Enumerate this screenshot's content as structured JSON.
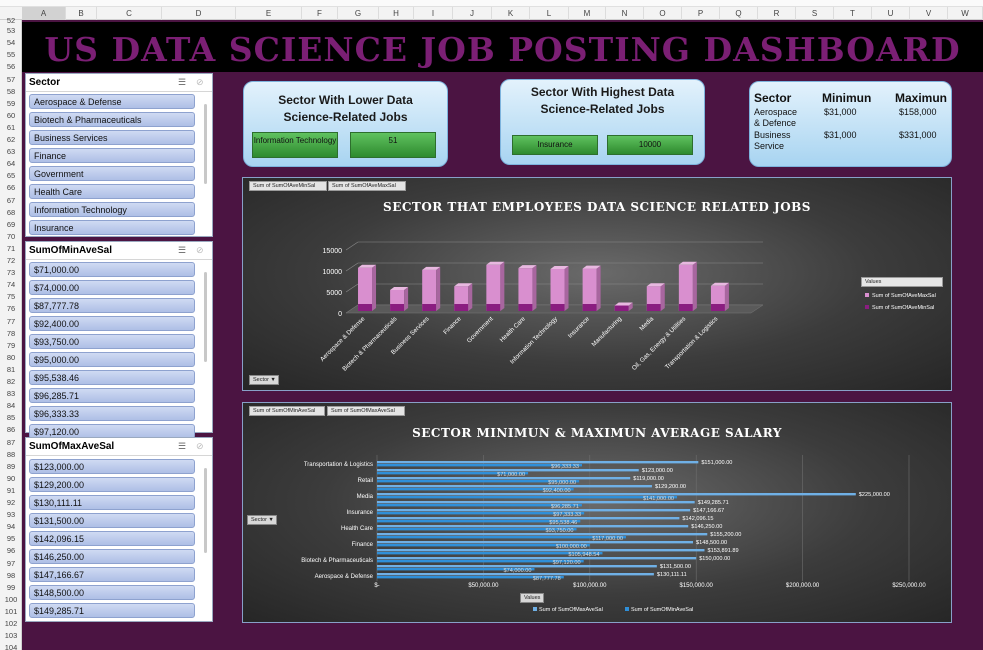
{
  "sheet": {
    "columns": [
      "A",
      "B",
      "C",
      "D",
      "E",
      "F",
      "G",
      "H",
      "I",
      "J",
      "K",
      "L",
      "M",
      "N",
      "O",
      "P",
      "Q",
      "R",
      "S",
      "T",
      "U",
      "V",
      "W"
    ],
    "rows": [
      "52",
      "53",
      "54",
      "55",
      "56",
      "57",
      "58",
      "59",
      "60",
      "61",
      "62",
      "63",
      "64",
      "65",
      "66",
      "67",
      "68",
      "69",
      "70",
      "71",
      "72",
      "73",
      "74",
      "75",
      "76",
      "77",
      "78",
      "79",
      "80",
      "81",
      "82",
      "83",
      "84",
      "85",
      "86",
      "87",
      "88",
      "89",
      "90",
      "91",
      "92",
      "93",
      "94",
      "95",
      "96",
      "97",
      "98",
      "99",
      "100",
      "101",
      "102",
      "103",
      "104"
    ]
  },
  "dashboard": {
    "title": "US DATA SCIENCE JOB POSTING DASHBOARD"
  },
  "slicers": [
    {
      "title": "Sector",
      "items": [
        "Aerospace & Defense",
        "Biotech & Pharmaceuticals",
        "Business Services",
        "Finance",
        "Government",
        "Health Care",
        "Information Technology",
        "Insurance"
      ]
    },
    {
      "title": "SumOfMinAveSal",
      "items": [
        "$71,000.00",
        "$74,000.00",
        "$87,777.78",
        "$92,400.00",
        "$93,750.00",
        "$95,000.00",
        "$95,538.46",
        "$96,285.71",
        "$96,333.33",
        "$97,120.00"
      ]
    },
    {
      "title": "SumOfMaxAveSal",
      "items": [
        "$123,000.00",
        "$129,200.00",
        "$130,111.11",
        "$131,500.00",
        "$142,096.15",
        "$146,250.00",
        "$147,166.67",
        "$148,500.00",
        "$149,285.71"
      ]
    }
  ],
  "cards": {
    "lower": {
      "title_line1": "Sector With Lower Data",
      "title_line2": "Science-Related Jobs",
      "sector": "Information Technology",
      "value": "51"
    },
    "highest": {
      "title_line1": "Sector With Highest Data",
      "title_line2": "Science-Related Jobs",
      "sector": "Insurance",
      "value": "10000"
    },
    "table": {
      "headers": [
        "Sector",
        "Minimun",
        "Maximun"
      ],
      "rows": [
        {
          "sector_line1": "Aerospace",
          "sector_line2": "& Defence",
          "min": "$31,000",
          "max": "$158,000"
        },
        {
          "sector_line1": "Business",
          "sector_line2": "Service",
          "min": "$31,000",
          "max": "$331,000"
        }
      ]
    }
  },
  "chart1": {
    "pivot_buttons": [
      "Sum of SumOfAveMinSal",
      "Sum of SumOfAveMaxSal"
    ],
    "field_button": "Sector ▼",
    "legend_title": "Values",
    "legend_items": [
      "Sum of SumOfAveMaxSal",
      "Sum of SumOfAveMinSal"
    ],
    "colors": {
      "max": "#d98fcf",
      "min": "#8a1d80"
    }
  },
  "chart2": {
    "pivot_buttons": [
      "Sum of SumOfMinAveSal",
      "Sum of SumOfMaxAveSal"
    ],
    "field_button": "Sector ▼",
    "values_button": "Values",
    "legend_items": [
      "Sum of SumOfMaxAveSal",
      "Sum of SumOfMinAveSal"
    ],
    "colors": {
      "max": "#6fb0e6",
      "min": "#2f8fd8"
    },
    "tick_labels": [
      "$-",
      "$50,000.00",
      "$100,000.00",
      "$150,000.00",
      "$200,000.00",
      "$250,000.00"
    ]
  },
  "chart_data": [
    {
      "type": "bar",
      "title": "SECTOR THAT EMPLOYEES DATA SCIENCE RELATED JOBS",
      "categories": [
        "Aerospace & Defense",
        "Biotech & Pharmaceuticals",
        "Business Services",
        "Finance",
        "Government",
        "Health Care",
        "Information Technology",
        "Insurance",
        "Manufacturing",
        "Media",
        "Oil, Gas, Energy & Utilities",
        "Transportation & Logistics"
      ],
      "series": [
        {
          "name": "Sum of SumOfAveMaxSal",
          "values": [
            10300,
            5000,
            9800,
            5900,
            11000,
            10200,
            10000,
            10100,
            1300,
            5900,
            11000,
            6000
          ]
        },
        {
          "name": "Sum of SumOfAveMinSal",
          "values": [
            10300,
            5000,
            9800,
            5900,
            11000,
            10200,
            10000,
            10100,
            1300,
            5900,
            11000,
            6000
          ]
        }
      ],
      "yticks": [
        "15000",
        "10000",
        "5000",
        "0"
      ],
      "ylim": [
        0,
        15000
      ],
      "legend": "right"
    },
    {
      "type": "bar",
      "title": "SECTOR MINIMUN & MAXIMUN AVERAGE SALARY",
      "categories": [
        "Aerospace & Defense",
        "",
        "Biotech & Pharmaceuticals",
        "",
        "Finance",
        "",
        "Health Care",
        "",
        "Insurance",
        "",
        "Media",
        "",
        "Retail",
        "",
        "Transportation & Logistics"
      ],
      "series": [
        {
          "name": "Sum of SumOfMaxAveSal",
          "values": [
            130111.11,
            131500,
            150000,
            153891.89,
            148500,
            155200,
            146250,
            142096.15,
            147166.67,
            149285.71,
            225000,
            129200,
            119000,
            123000,
            151000
          ]
        },
        {
          "name": "Sum of SumOfMinAveSal",
          "values": [
            87777.78,
            74000,
            97120,
            105948.54,
            100000,
            117000,
            93750,
            95538.46,
            97333.33,
            96285.71,
            141000,
            92400,
            95000,
            71000,
            96333.33
          ]
        }
      ],
      "data_labels_max": [
        "$130,111.11",
        "$131,500.00",
        "$150,000.00",
        "$153,891.89",
        "$148,500.00",
        "$155,200.00",
        "$146,250.00",
        "$142,096.15",
        "$147,166.67",
        "$149,285.71",
        "$225,000.00",
        "$129,200.00",
        "$119,000.00",
        "$123,000.00",
        "$151,000.00"
      ],
      "data_labels_min": [
        "$87,777.78",
        "$74,000.00",
        "$97,120.00",
        "$105,948.54",
        "$100,000.00",
        "$117,000.00",
        "$93,750.00",
        "$95,538.46",
        "$97,333.33",
        "$96,285.71",
        "$141,000.00",
        "$92,400.00",
        "$95,000.00",
        "$71,000.00",
        "$96,333.33"
      ],
      "xlim": [
        0,
        250000
      ],
      "legend": "bottom"
    }
  ]
}
